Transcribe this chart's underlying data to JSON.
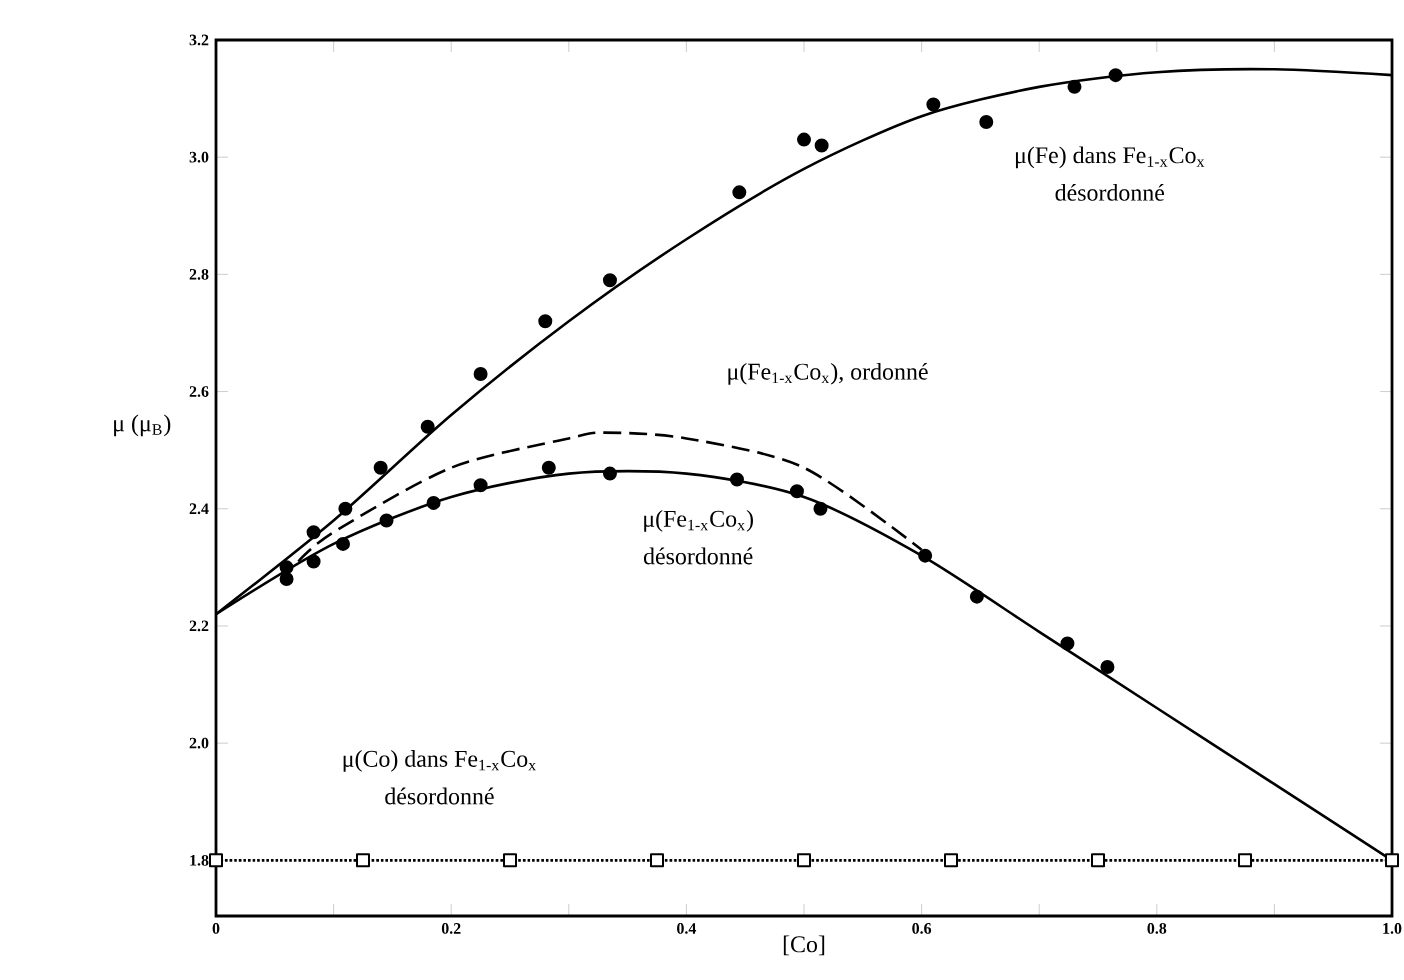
{
  "chart_data": {
    "type": "line",
    "xlabel": "[Co]",
    "ylabel": "μ (μ$_{B}$)",
    "xlim": [
      0,
      1.0
    ],
    "ylim": [
      1.705,
      3.2
    ],
    "xticks": [
      0,
      {
        "value": 0.1,
        "label": null
      },
      0.2,
      {
        "value": 0.3,
        "label": null
      },
      0.4,
      {
        "value": 0.5,
        "label": null
      },
      0.6,
      {
        "value": 0.7,
        "label": null
      },
      0.8,
      {
        "value": 0.9,
        "label": null
      },
      {
        "value": 1.0,
        "label": "1.0"
      }
    ],
    "yticks": [
      1.8,
      {
        "value": 2.0,
        "label": "2.0"
      },
      2.2,
      2.4,
      2.6,
      2.8,
      {
        "value": 3.0,
        "label": "3.0"
      },
      3.2
    ],
    "series": [
      {
        "color": "#000000",
        "marker": "none",
        "line_style": "solid",
        "x": [
          0,
          0.1,
          0.2,
          0.3,
          0.4,
          0.5,
          0.6,
          0.7,
          0.8,
          0.9,
          1.0
        ],
        "values": [
          2.22,
          2.38,
          2.56,
          2.72,
          2.86,
          2.98,
          3.07,
          3.12,
          3.145,
          3.15,
          3.14
        ]
      },
      {
        "type": "scatter",
        "color": "#000000",
        "marker": "circle",
        "x": [
          0.06,
          0.083,
          0.11,
          0.14,
          0.18,
          0.225,
          0.28,
          0.335,
          0.445,
          0.5,
          0.515,
          0.61,
          0.655,
          0.73,
          0.765
        ],
        "values": [
          2.3,
          2.36,
          2.4,
          2.47,
          2.54,
          2.63,
          2.72,
          2.79,
          2.94,
          3.03,
          3.02,
          3.09,
          3.06,
          3.12,
          3.14
        ]
      },
      {
        "color": "#000000",
        "marker": "none",
        "line_style": "dashed",
        "x": [
          0.07,
          0.1,
          0.2,
          0.3,
          0.33,
          0.4,
          0.5,
          0.6
        ],
        "values": [
          2.31,
          2.36,
          2.47,
          2.52,
          2.53,
          2.52,
          2.47,
          2.33
        ]
      },
      {
        "color": "#000000",
        "marker": "none",
        "line_style": "solid",
        "x": [
          0,
          0.1,
          0.2,
          0.3,
          0.4,
          0.5,
          0.6,
          0.7,
          0.8,
          0.9,
          1.0
        ],
        "values": [
          2.22,
          2.34,
          2.42,
          2.46,
          2.46,
          2.42,
          2.32,
          2.19,
          2.06,
          1.93,
          1.8
        ]
      },
      {
        "type": "scatter",
        "color": "#000000",
        "marker": "circle",
        "x": [
          0.06,
          0.083,
          0.108,
          0.145,
          0.185,
          0.225,
          0.283,
          0.335,
          0.443,
          0.494,
          0.514,
          0.603,
          0.647,
          0.724,
          0.758
        ],
        "values": [
          2.28,
          2.31,
          2.34,
          2.38,
          2.41,
          2.44,
          2.47,
          2.46,
          2.45,
          2.43,
          2.4,
          2.32,
          2.25,
          2.17,
          2.13
        ]
      },
      {
        "color": "#000000",
        "marker": "square",
        "line_style": "dotted",
        "x": [
          0,
          0.125,
          0.25,
          0.375,
          0.5,
          0.625,
          0.75,
          0.875,
          1.0
        ],
        "values": [
          1.8,
          1.8,
          1.8,
          1.8,
          1.8,
          1.8,
          1.8,
          1.8,
          1.8
        ]
      }
    ],
    "annotations": [
      "μ(Fe) dans Fe$_{1-x}$Co$_{x}$",
      "désordonné",
      "μ(Fe$_{1-x}$Co$_{x}$), ordonné",
      "μ(Fe$_{1-x}$Co$_{x}$)",
      "désordonné",
      "μ(Co) dans Fe$_{1-x}$Co$_{x}$",
      "désordonné"
    ]
  }
}
